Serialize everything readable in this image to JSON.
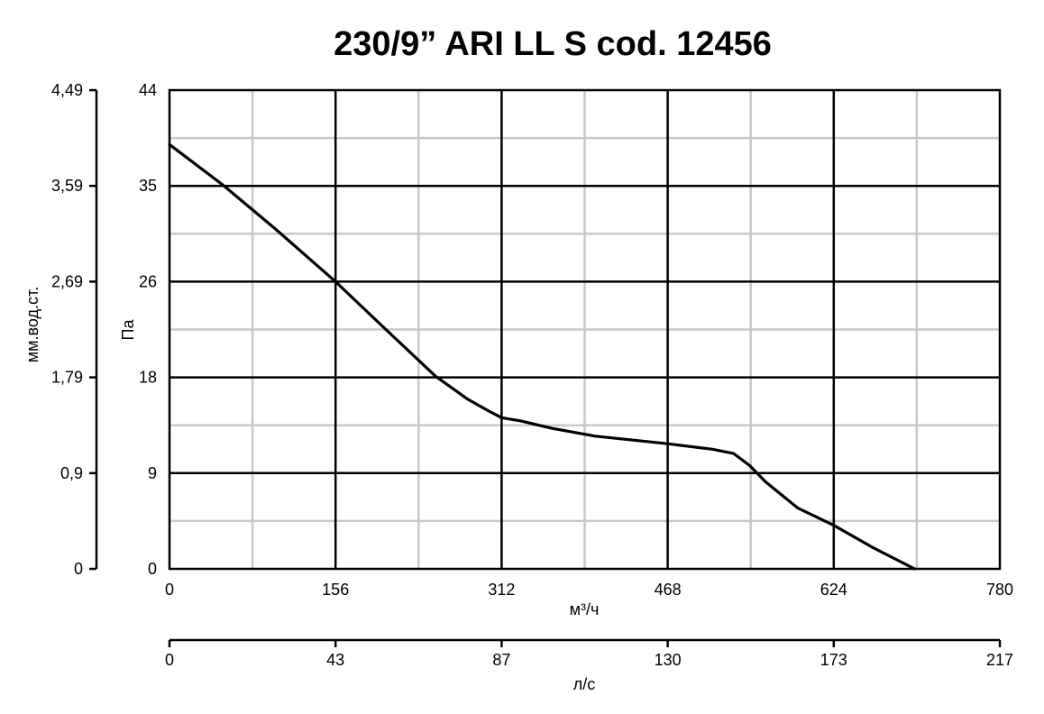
{
  "chart_data": {
    "type": "line",
    "title": "230/9” ARI LL S cod. 12456",
    "xlabel": "м³/ч",
    "ylabel": "Па",
    "xlim": [
      0,
      780
    ],
    "ylim": [
      0,
      44
    ],
    "x_ticks": [
      "0",
      "156",
      "312",
      "468",
      "624",
      "780"
    ],
    "y_ticks": [
      "0",
      "9",
      "18",
      "26",
      "35",
      "44"
    ],
    "secondary_y": {
      "label": "мм.вод.ст.",
      "ticks": [
        "0",
        "0,9",
        "1,79",
        "2,69",
        "3,59",
        "4,49"
      ]
    },
    "secondary_x": {
      "label": "л/с",
      "ticks": [
        "0",
        "43",
        "87",
        "130",
        "173",
        "217"
      ]
    },
    "grid": true,
    "series": [
      {
        "x": [
          0,
          50,
          100,
          156,
          200,
          250,
          280,
          300,
          312,
          330,
          360,
          400,
          468,
          510,
          530,
          545,
          560,
          590,
          624,
          660,
          700
        ],
        "y": [
          39,
          35.3,
          31.2,
          26.4,
          22.3,
          17.7,
          15.6,
          14.5,
          13.9,
          13.6,
          12.9,
          12.2,
          11.5,
          11.0,
          10.6,
          9.5,
          8.0,
          5.6,
          4.0,
          2.0,
          0
        ]
      }
    ],
    "line_color": "#000000"
  }
}
